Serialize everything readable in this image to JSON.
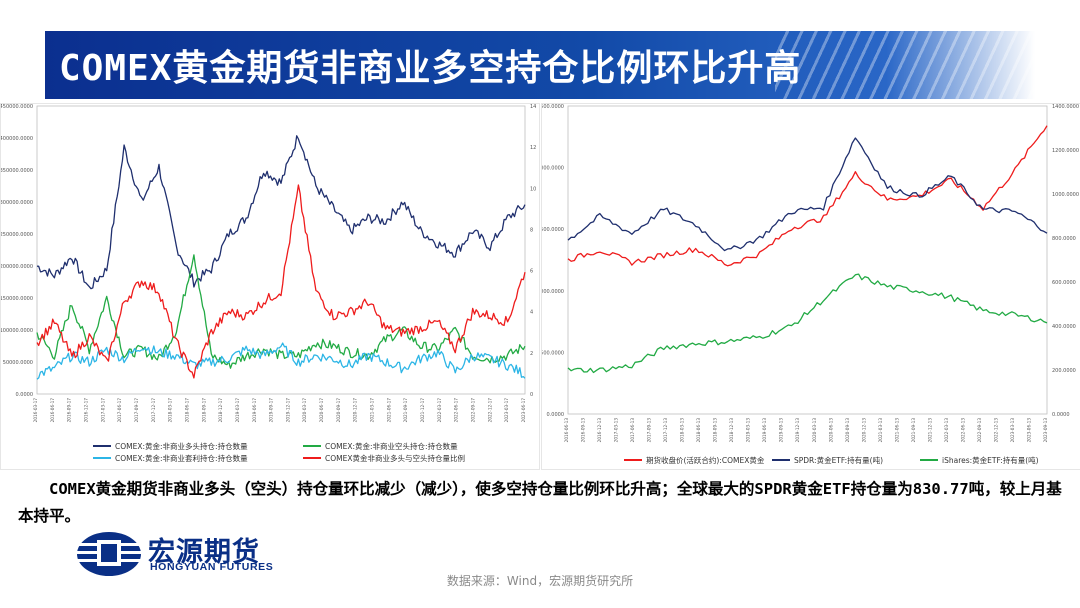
{
  "page": {
    "title": "COMEX黄金期货非商业多空持仓比例环比升高",
    "summary": "COMEX黄金期货非商业多头（空头）持仓量环比减少（减少），使多空持仓量比例环比升高；全球最大的SPDR黄金ETF持仓量为830.77吨，较上月基本持平。",
    "logo_cn": "宏源期货",
    "logo_en": "HONGYUAN FUTURES",
    "source": "数据来源：Wind，宏源期货研究所"
  },
  "colors": {
    "banner": "#0b2f8f",
    "navy": "#1f2f6e",
    "red": "#ee1c1c",
    "green": "#22aa44",
    "cyan": "#2cb5e6"
  },
  "chart_data": [
    {
      "type": "line",
      "title": "",
      "x": [
        "2016-06-17",
        "2016-09-17",
        "2016-12-17",
        "2017-03-17",
        "2017-06-17",
        "2017-09-17",
        "2017-12-17",
        "2018-03-17",
        "2018-06-17",
        "2018-09-17",
        "2018-12-17",
        "2019-03-17",
        "2019-06-17",
        "2019-09-17",
        "2019-12-17",
        "2020-03-17",
        "2020-06-17",
        "2020-09-17",
        "2020-12-17",
        "2021-03-17",
        "2021-06-17",
        "2021-09-17",
        "2021-12-17",
        "2022-03-17",
        "2022-06-17",
        "2022-09-17",
        "2022-12-17",
        "2023-03-17",
        "2023-06-17"
      ],
      "x_tick_labels": [
        "2016-03-17",
        "2016-06-17",
        "2016-09-17",
        "2016-12-17",
        "2017-03-17",
        "2017-06-17",
        "2017-09-17",
        "2017-12-17",
        "2018-03-17",
        "2018-06-17",
        "2018-09-17",
        "2018-12-17",
        "2019-03-17",
        "2019-06-17",
        "2019-09-17",
        "2019-12-17",
        "2020-03-17",
        "2020-06-17",
        "2020-09-17",
        "2020-12-17",
        "2021-03-17",
        "2021-06-17",
        "2021-09-17",
        "2021-12-17",
        "2022-03-17",
        "2022-06-17",
        "2022-09-17",
        "2022-12-17",
        "2023-03-17",
        "2023-06-17"
      ],
      "y_left_ticks": [
        "450000.0000",
        "400000.0000",
        "350000.0000",
        "300000.0000",
        "250000.0000",
        "200000.0000",
        "150000.0000",
        "100000.0000",
        "50000.0000",
        "0.0000"
      ],
      "y_right_ticks": [
        "14",
        "12",
        "10",
        "8",
        "6",
        "4",
        "2",
        "0"
      ],
      "ylim_left": [
        0,
        450000
      ],
      "ylim_right": [
        0,
        14
      ],
      "legend_position": "bottom",
      "series": [
        {
          "name": "COMEX:黄金:非商业多头持仓:持仓数量",
          "axis": "left",
          "color": "#1f2f6e",
          "values": [
            200000,
            185000,
            215000,
            165000,
            195000,
            385000,
            300000,
            355000,
            230000,
            175000,
            195000,
            250000,
            275000,
            350000,
            330000,
            405000,
            325000,
            290000,
            255000,
            275000,
            270000,
            300000,
            255000,
            235000,
            220000,
            255000,
            230000,
            275000,
            295000
          ]
        },
        {
          "name": "COMEX:黄金:非商业空头持仓:持仓数量",
          "axis": "left",
          "color": "#22aa44",
          "values": [
            95000,
            60000,
            140000,
            70000,
            150000,
            60000,
            70000,
            55000,
            100000,
            220000,
            60000,
            45000,
            60000,
            70000,
            60000,
            60000,
            80000,
            75000,
            65000,
            60000,
            85000,
            100000,
            75000,
            70000,
            100000,
            60000,
            55000,
            60000,
            75000
          ]
        },
        {
          "name": "COMEX:黄金:非商业套利持仓:持仓数量",
          "axis": "left",
          "color": "#2cb5e6",
          "values": [
            30000,
            40000,
            60000,
            50000,
            70000,
            55000,
            75000,
            65000,
            60000,
            45000,
            50000,
            55000,
            70000,
            60000,
            75000,
            50000,
            60000,
            55000,
            45000,
            60000,
            50000,
            40000,
            55000,
            65000,
            35000,
            60000,
            55000,
            45000,
            30000
          ]
        },
        {
          "name": "COMEX黄金非商业多头与空头持仓量比例",
          "axis": "right",
          "color": "#ee1c1c",
          "values": [
            2.5,
            3.5,
            1.8,
            2.8,
            1.5,
            4.5,
            5.5,
            5.0,
            2.5,
            0.9,
            3.0,
            4.0,
            3.8,
            4.5,
            5.0,
            10.0,
            5.0,
            3.8,
            4.0,
            4.5,
            3.2,
            3.0,
            3.2,
            3.5,
            2.2,
            4.0,
            3.8,
            3.5,
            6.0
          ]
        }
      ]
    },
    {
      "type": "line",
      "title": "",
      "x": [
        "2016-03-13",
        "2016-09-13",
        "2017-03-13",
        "2017-09-13",
        "2018-03-13",
        "2018-09-13",
        "2019-03-13",
        "2019-09-13",
        "2020-03-13",
        "2020-09-13",
        "2021-03-13",
        "2021-09-13",
        "2022-03-13",
        "2022-09-13",
        "2023-03-13",
        "2023-09-13"
      ],
      "x_tick_labels": [
        "2016-06-13",
        "2016-09-13",
        "2016-12-13",
        "2017-03-13",
        "2017-06-13",
        "2017-09-13",
        "2017-12-13",
        "2018-03-13",
        "2018-06-13",
        "2018-09-13",
        "2018-12-13",
        "2019-03-13",
        "2019-06-13",
        "2019-09-13",
        "2019-12-13",
        "2020-03-13",
        "2020-06-13",
        "2020-09-13",
        "2020-12-13",
        "2021-03-13",
        "2021-06-13",
        "2021-09-13",
        "2021-12-13",
        "2022-03-13",
        "2022-06-13",
        "2022-09-13",
        "2022-12-13",
        "2023-03-13",
        "2023-06-13",
        "2023-09-13"
      ],
      "y_left_ticks": [
        "2500.0000",
        "2000.0000",
        "1500.0000",
        "1000.0000",
        "500.0000",
        "0.0000"
      ],
      "y_right_ticks": [
        "1400.0000",
        "1200.0000",
        "1000.0000",
        "800.0000",
        "600.0000",
        "400.0000",
        "200.0000",
        "0.0000"
      ],
      "ylim_left": [
        0,
        2500
      ],
      "ylim_right": [
        0,
        1400
      ],
      "legend_position": "bottom",
      "series": [
        {
          "name": "期货收盘价(活跃合约):COMEX黄金",
          "axis": "left",
          "color": "#ee1c1c",
          "values": [
            1250,
            1330,
            1230,
            1290,
            1340,
            1210,
            1300,
            1510,
            1590,
            1950,
            1740,
            1770,
            1900,
            1670,
            1980,
            2350
          ]
        },
        {
          "name": "SPDR:黄金ETF:持有量(吨)",
          "axis": "right",
          "color": "#1f2f6e",
          "values": [
            790,
            900,
            820,
            930,
            860,
            740,
            800,
            920,
            940,
            1260,
            1030,
            990,
            1080,
            930,
            920,
            830
          ]
        },
        {
          "name": "iShares:黄金ETF:持有量(吨)",
          "axis": "right",
          "color": "#22aa44",
          "values": [
            200,
            200,
            220,
            300,
            320,
            330,
            350,
            400,
            520,
            630,
            580,
            560,
            530,
            470,
            450,
            420
          ]
        }
      ]
    }
  ]
}
